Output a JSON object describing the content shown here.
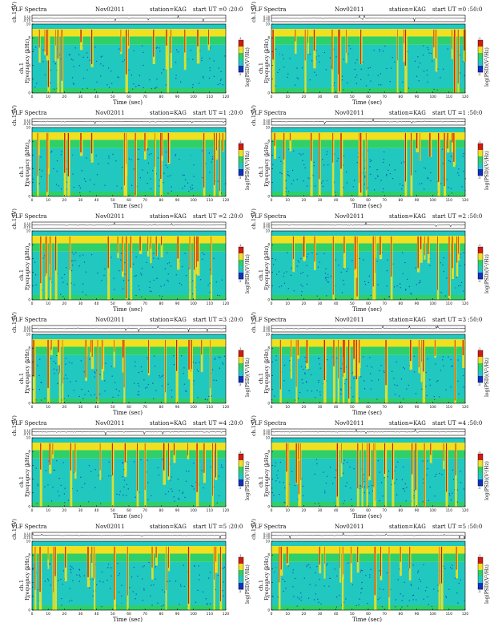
{
  "header": {
    "title": "VLF Spectra",
    "date": "Nov02011",
    "station": "station=KAG",
    "start_prefix": "start  UT ="
  },
  "labels": {
    "top_ylabel": "ch.1 (V)",
    "spec_ylabel": "Frequency  (kHz)",
    "ch_label": "ch.1",
    "colorbar_label": "log(PSD)(V²/Hz)",
    "xlabel": "Time  (sec)"
  },
  "panels": [
    {
      "start": "0 :20:0"
    },
    {
      "start": "0 :50:0"
    },
    {
      "start": "1 :20:0"
    },
    {
      "start": "1 :50:0"
    },
    {
      "start": "2 :20:0"
    },
    {
      "start": "2 :50:0"
    },
    {
      "start": "3 :20:0"
    },
    {
      "start": "3 :50:0"
    },
    {
      "start": "4 :20:0"
    },
    {
      "start": "4 :50:0"
    },
    {
      "start": "5 :20:0"
    },
    {
      "start": "5 :50:0"
    }
  ],
  "chart_data": {
    "type": "heatmap",
    "x_ticks": [
      0,
      10,
      20,
      30,
      40,
      50,
      60,
      70,
      80,
      90,
      100,
      110,
      120
    ],
    "xlim": [
      0,
      120
    ],
    "y_ticks_spectrogram": [
      0,
      2,
      4,
      6,
      8,
      10
    ],
    "ylim_spectrogram": [
      0,
      10
    ],
    "y_ticks_waveform": [
      "0.10",
      "0.00",
      "-0.10"
    ],
    "colorbar_ticks": [
      "-1",
      "-5"
    ],
    "colors": {
      "high": "#d11a10",
      "upper": "#f0e020",
      "mid": "#2fcf6a",
      "low": "#20c8c0",
      "lowest": "#1030c0"
    }
  }
}
